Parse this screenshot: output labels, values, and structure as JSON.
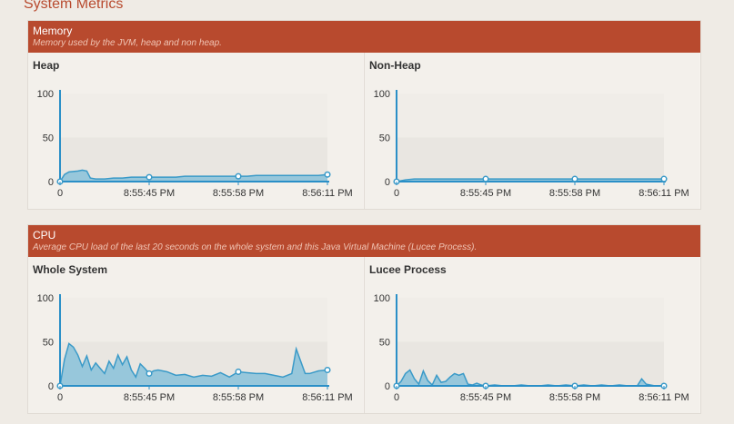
{
  "page": {
    "title": "System Metrics"
  },
  "colors": {
    "header": "#b84a2e",
    "fill": "#8ec3da",
    "line": "#3a9ac8",
    "axis": "#2a8fc7"
  },
  "sections": [
    {
      "title": "Memory",
      "description": "Memory used by the JVM, heap and non heap.",
      "charts": [
        "heap",
        "nonheap"
      ]
    },
    {
      "title": "CPU",
      "description": "Average CPU load of the last 20 seconds on the whole system and this Java Virtual Machine (Lucee Process).",
      "charts": [
        "whole",
        "lucee"
      ]
    }
  ],
  "chart_data": [
    {
      "id": "heap",
      "type": "area",
      "title": "Heap",
      "ylim": [
        0,
        100
      ],
      "yticks": [
        100,
        50,
        0
      ],
      "xticks": [
        "0",
        "8:55:45 PM",
        "8:55:58 PM",
        "8:56:11 PM"
      ],
      "x": [
        0,
        0.5,
        1,
        2,
        2.5,
        3,
        3.4,
        4,
        5,
        6,
        7,
        8,
        9,
        10,
        11,
        12,
        13,
        14,
        15,
        16,
        17,
        18,
        19,
        20,
        21,
        22,
        23,
        24,
        25,
        26,
        27,
        28,
        29,
        30
      ],
      "values": [
        0,
        8,
        11,
        12,
        13,
        12,
        4,
        3,
        3,
        4,
        4,
        5,
        5,
        5,
        5,
        5,
        5,
        6,
        6,
        6,
        6,
        6,
        6,
        6,
        6,
        7,
        7,
        7,
        7,
        7,
        7,
        7,
        7,
        8
      ],
      "markers": [
        10,
        20,
        30
      ]
    },
    {
      "id": "nonheap",
      "type": "area",
      "title": "Non-Heap",
      "ylim": [
        0,
        100
      ],
      "yticks": [
        100,
        50,
        0
      ],
      "xticks": [
        "0",
        "8:55:45 PM",
        "8:55:58 PM",
        "8:56:11 PM"
      ],
      "x": [
        0,
        1,
        2,
        5,
        10,
        15,
        20,
        25,
        30
      ],
      "values": [
        0,
        2,
        3,
        3,
        3,
        3,
        3,
        3,
        3
      ],
      "markers": [
        10,
        20,
        30
      ]
    },
    {
      "id": "whole",
      "type": "area",
      "title": "Whole System",
      "ylim": [
        0,
        100
      ],
      "yticks": [
        100,
        50,
        0
      ],
      "xticks": [
        "0",
        "8:55:45 PM",
        "8:55:58 PM",
        "8:56:11 PM"
      ],
      "x": [
        0,
        0.5,
        1,
        1.5,
        2,
        2.5,
        3,
        3.5,
        4,
        4.5,
        5,
        5.5,
        6,
        6.5,
        7,
        7.5,
        8,
        8.5,
        9,
        9.5,
        10,
        10.5,
        11,
        12,
        13,
        14,
        15,
        16,
        17,
        18,
        19,
        20,
        21,
        22,
        23,
        24,
        25,
        26,
        26.5,
        27,
        27.5,
        28,
        29,
        30
      ],
      "values": [
        0,
        30,
        48,
        44,
        35,
        22,
        34,
        18,
        26,
        20,
        14,
        28,
        20,
        35,
        24,
        33,
        18,
        10,
        25,
        20,
        14,
        17,
        18,
        16,
        12,
        13,
        10,
        12,
        11,
        15,
        10,
        16,
        15,
        14,
        14,
        12,
        10,
        14,
        42,
        28,
        14,
        14,
        17,
        18
      ],
      "markers": [
        10,
        20,
        30
      ]
    },
    {
      "id": "lucee",
      "type": "area",
      "title": "Lucee Process",
      "ylim": [
        0,
        100
      ],
      "yticks": [
        100,
        50,
        0
      ],
      "xticks": [
        "0",
        "8:55:45 PM",
        "8:55:58 PM",
        "8:56:11 PM"
      ],
      "x": [
        0,
        0.5,
        1,
        1.5,
        2,
        2.5,
        3,
        3.5,
        4,
        4.5,
        5,
        5.5,
        6,
        6.5,
        7,
        7.5,
        8,
        8.5,
        9,
        9.5,
        10,
        11,
        12,
        13,
        14,
        15,
        16,
        17,
        18,
        19,
        20,
        21,
        22,
        23,
        24,
        25,
        26,
        27,
        27.5,
        28,
        29,
        30
      ],
      "values": [
        0,
        5,
        14,
        18,
        8,
        2,
        17,
        6,
        1,
        12,
        4,
        5,
        10,
        14,
        12,
        14,
        2,
        1,
        3,
        1,
        0,
        1,
        0,
        0,
        1,
        0,
        0,
        1,
        0,
        1,
        0,
        1,
        0,
        1,
        0,
        1,
        0,
        0,
        8,
        2,
        0,
        0
      ],
      "markers": [
        10,
        20,
        30
      ]
    }
  ]
}
